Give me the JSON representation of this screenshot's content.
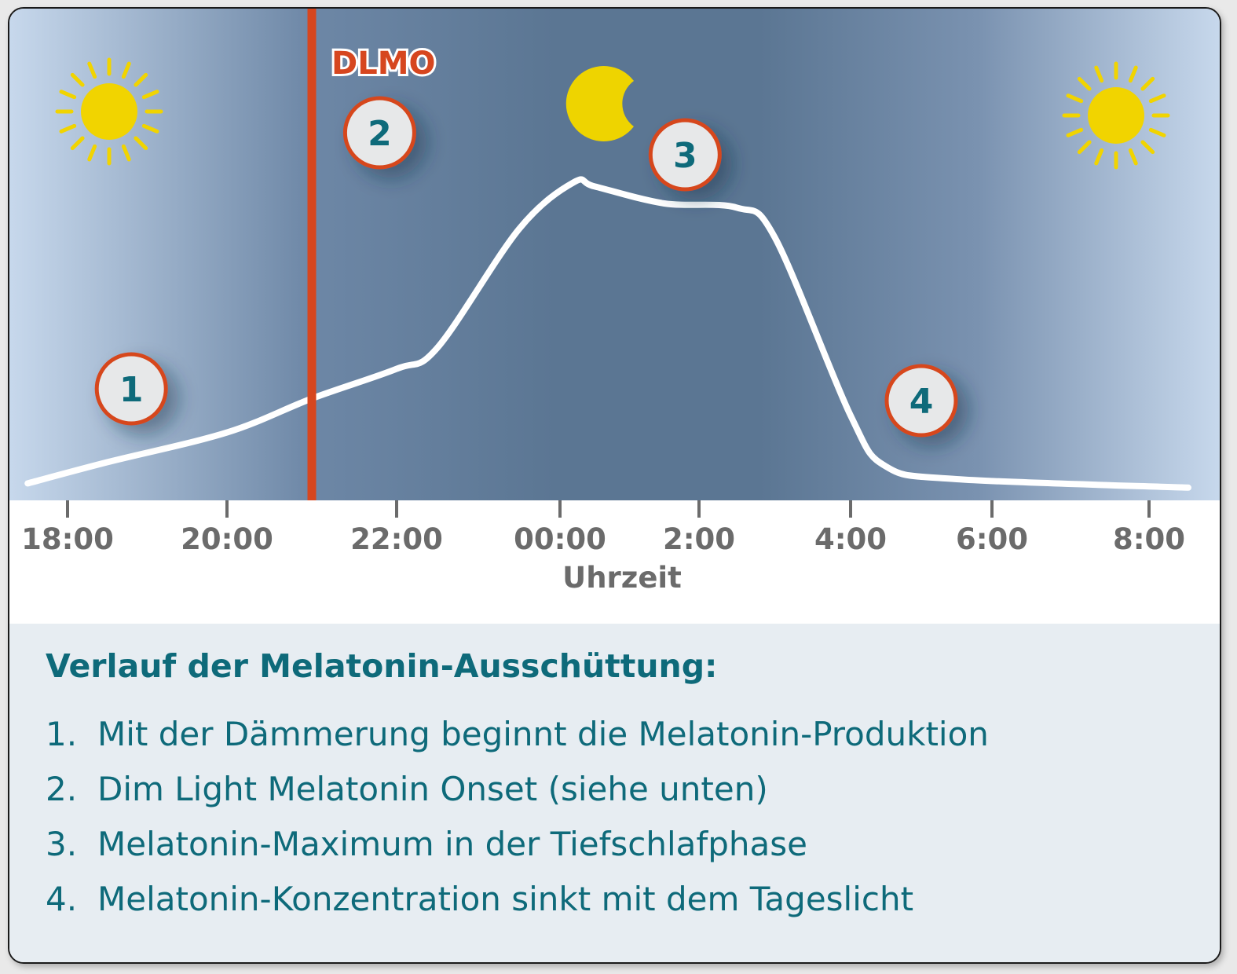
{
  "chart_data": {
    "type": "line",
    "xlabel": "Uhrzeit",
    "tick_labels": [
      "18:00",
      "20:00",
      "22:00",
      "00:00",
      "2:00",
      "4:00",
      "6:00",
      "8:00"
    ],
    "series": [
      {
        "x": [
          17.5,
          18.5,
          20.0,
          21.0,
          22.0,
          22.5,
          23.5,
          0.2,
          0.5,
          1.5,
          2.5,
          3.0,
          4.0,
          4.5,
          5.5,
          8.5
        ],
        "y": [
          0.04,
          0.09,
          0.16,
          0.24,
          0.31,
          0.36,
          0.64,
          0.75,
          0.74,
          0.7,
          0.69,
          0.62,
          0.2,
          0.08,
          0.05,
          0.03
        ]
      }
    ],
    "vline": {
      "x": 21.0,
      "label": "DLMO",
      "color": "#d6461f"
    },
    "markers": [
      {
        "label": "1",
        "x": 18.8
      },
      {
        "label": "2",
        "x": 21.8
      },
      {
        "label": "3",
        "x": 1.8
      },
      {
        "label": "4",
        "x": 5.0
      }
    ],
    "icons": [
      "sun-icon",
      "moon-icon",
      "sun-icon"
    ]
  },
  "legend": {
    "title": "Verlauf der Melatonin-Ausschüttung:",
    "items": [
      {
        "num": "1.",
        "text": "Mit der Dämmerung beginnt die Melatonin-Produktion"
      },
      {
        "num": "2.",
        "text": "Dim Light Melatonin Onset (siehe unten)"
      },
      {
        "num": "3.",
        "text": "Melatonin-Maximum in der Tiefschlafphase"
      },
      {
        "num": "4.",
        "text": "Melatonin-Konzentration sinkt mit dem Tageslicht"
      }
    ]
  },
  "colors": {
    "night_dark": "#5b7693",
    "day_light": "#c7d8ec",
    "curve": "#ffffff",
    "axis_text": "#6b6b6b",
    "marker_ring": "#d6461f",
    "marker_text": "#0e6a7a",
    "sun": "#f1d400",
    "moon": "#eed400"
  }
}
